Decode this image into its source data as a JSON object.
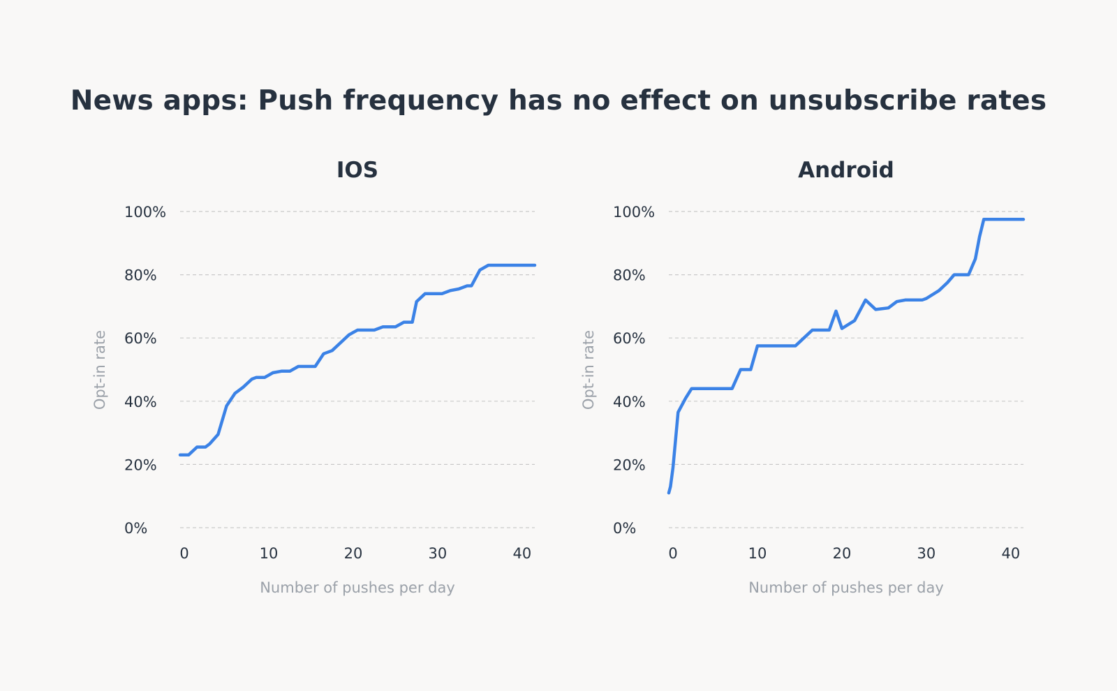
{
  "page_title": "News apps: Push frequency has no effect on unsubscribe rates",
  "colors": {
    "background": "#f9f8f7",
    "text": "#26313f",
    "muted": "#9aa0a8",
    "grid": "#c9c9c9",
    "line": "#3b82e6"
  },
  "chart_data": [
    {
      "type": "line",
      "title": "IOS",
      "xlabel": "Number of pushes per day",
      "ylabel": "Opt-in rate",
      "xlim": [
        -0.5,
        41.5
      ],
      "ylim": [
        0,
        100
      ],
      "xticks": [
        0,
        10,
        20,
        30,
        40
      ],
      "yticks": [
        0,
        20,
        40,
        60,
        80,
        100
      ],
      "xtick_labels": [
        "0",
        "10",
        "20",
        "30",
        "40"
      ],
      "ytick_labels": [
        "0%",
        "20%",
        "40%",
        "60%",
        "80%",
        "100%"
      ],
      "grid": true,
      "series": [
        {
          "name": "IOS",
          "x": [
            -0.5,
            0.5,
            1.5,
            2.5,
            3.0,
            4.0,
            5.0,
            6.0,
            7.0,
            8.0,
            8.5,
            9.5,
            10.5,
            11.5,
            12.5,
            13.5,
            14.5,
            15.5,
            16.5,
            17.5,
            18.5,
            19.5,
            20.5,
            21.5,
            22.5,
            23.5,
            24.5,
            25.0,
            26.0,
            27.0,
            27.5,
            28.5,
            29.5,
            30.5,
            31.5,
            32.5,
            33.5,
            34.0,
            35.0,
            36.0,
            37.0,
            38.0,
            39.0,
            40.0,
            41.5
          ],
          "y": [
            23,
            23,
            25.5,
            25.5,
            26.5,
            29.5,
            38.5,
            42.5,
            44.5,
            47,
            47.5,
            47.5,
            49,
            49.5,
            49.5,
            51,
            51,
            51,
            55,
            56,
            58.5,
            61,
            62.5,
            62.5,
            62.5,
            63.5,
            63.5,
            63.5,
            65,
            65,
            71.5,
            74,
            74,
            74,
            75,
            75.5,
            76.5,
            76.5,
            81.5,
            83,
            83,
            83,
            83,
            83,
            83
          ]
        }
      ]
    },
    {
      "type": "line",
      "title": "Android",
      "xlabel": "Number of pushes per day",
      "ylabel": "Opt-in rate",
      "xlim": [
        -0.5,
        41.5
      ],
      "ylim": [
        0,
        100
      ],
      "xticks": [
        0,
        10,
        20,
        30,
        40
      ],
      "yticks": [
        0,
        20,
        40,
        60,
        80,
        100
      ],
      "xtick_labels": [
        "0",
        "10",
        "20",
        "30",
        "40"
      ],
      "ytick_labels": [
        "0%",
        "20%",
        "40%",
        "60%",
        "80%",
        "100%"
      ],
      "grid": true,
      "series": [
        {
          "name": "Android",
          "x": [
            -0.5,
            -0.3,
            0.0,
            0.2,
            0.6,
            1.5,
            2.2,
            3.3,
            4.5,
            6.0,
            7.0,
            8.0,
            9.2,
            10.0,
            11.0,
            12.5,
            13.5,
            14.5,
            15.5,
            16.5,
            17.5,
            18.5,
            19.3,
            20.0,
            21.5,
            22.8,
            24.0,
            25.5,
            26.5,
            27.5,
            28.5,
            29.5,
            30.0,
            31.5,
            32.5,
            33.3,
            34.2,
            35.0,
            35.8,
            36.3,
            36.8,
            38.0,
            41.5
          ],
          "y": [
            11,
            13,
            19,
            25,
            36.5,
            41,
            44,
            44,
            44,
            44,
            44,
            50,
            50,
            57.5,
            57.5,
            57.5,
            57.5,
            57.5,
            60,
            62.5,
            62.5,
            62.5,
            68.5,
            63,
            65.5,
            72,
            69,
            69.5,
            71.5,
            72,
            72,
            72,
            72.5,
            75,
            77.5,
            80,
            80,
            80,
            85,
            92,
            97.5,
            97.5,
            97.5
          ]
        }
      ]
    }
  ]
}
